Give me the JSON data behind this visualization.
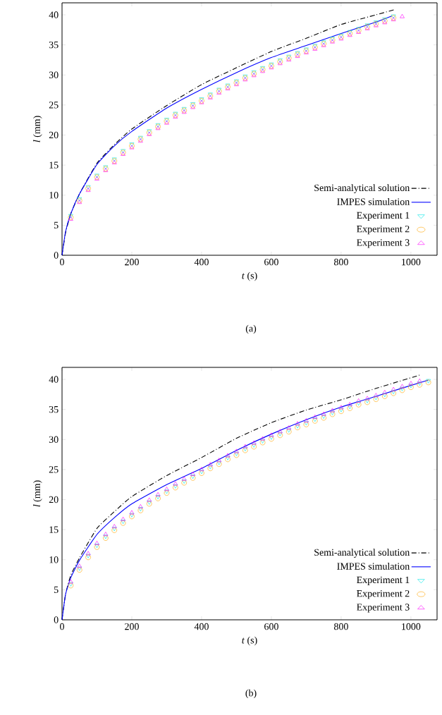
{
  "chart_data": [
    {
      "type": "line",
      "xlabel": "*t* (s)",
      "ylabel": "*l* (mm)",
      "annotations": [
        "(a)"
      ],
      "xlim": [
        0,
        1075
      ],
      "ylim": [
        0,
        42
      ],
      "xticks": [
        0,
        200,
        400,
        600,
        800,
        1000
      ],
      "yticks": [
        0,
        5,
        10,
        15,
        20,
        25,
        30,
        35,
        40
      ],
      "grid": false,
      "legend": "bottom right",
      "series": [
        {
          "name": "Semi-analytical solution",
          "line_style": "dashdot",
          "marker": "none",
          "color": "#000000",
          "x": [
            0,
            10,
            25,
            50,
            100,
            150,
            200,
            300,
            400,
            500,
            600,
            700,
            800,
            900,
            955
          ],
          "values": [
            0,
            3.7,
            6.9,
            10.2,
            15.3,
            18.4,
            21.0,
            24.9,
            28.4,
            31.2,
            33.9,
            36.1,
            38.4,
            40.0,
            40.9
          ]
        },
        {
          "name": "IMPES simulation",
          "line_style": "solid",
          "marker": "none",
          "color": "#0000ff",
          "x": [
            0,
            10,
            25,
            50,
            100,
            150,
            200,
            300,
            400,
            500,
            600,
            700,
            800,
            900,
            945
          ],
          "values": [
            0,
            3.9,
            6.9,
            10.2,
            15.1,
            18.2,
            20.6,
            24.5,
            27.6,
            30.4,
            32.9,
            34.9,
            36.9,
            38.8,
            39.8
          ]
        },
        {
          "name": "Experiment 1",
          "type": "scatter",
          "marker": "triangle_down",
          "color": "#00e5e5",
          "x": [
            25,
            50,
            75,
            100,
            125,
            150,
            175,
            200,
            225,
            250,
            275,
            300,
            325,
            350,
            375,
            400,
            425,
            450,
            475,
            500,
            525,
            550,
            575,
            600,
            625,
            650,
            675,
            700,
            725,
            750,
            775,
            800,
            825,
            850,
            875,
            900,
            925,
            950
          ],
          "values": [
            6.6,
            9.4,
            11.4,
            13.3,
            14.7,
            16.0,
            17.4,
            18.5,
            19.6,
            20.7,
            21.7,
            22.6,
            23.6,
            24.4,
            25.2,
            26.0,
            26.8,
            27.6,
            28.3,
            29.0,
            29.8,
            30.5,
            31.2,
            31.8,
            32.5,
            33.1,
            33.7,
            34.3,
            34.9,
            35.5,
            36.1,
            36.6,
            37.2,
            37.7,
            38.3,
            38.8,
            39.3,
            39.8
          ]
        },
        {
          "name": "Experiment 2",
          "type": "scatter",
          "marker": "circle",
          "color": "#ffa500",
          "x": [
            25,
            50,
            75,
            100,
            125,
            150,
            175,
            200,
            225,
            250,
            275,
            300,
            325,
            350,
            375,
            400,
            425,
            450,
            475,
            500,
            525,
            550,
            575,
            600,
            625,
            650,
            675,
            700,
            725,
            750,
            775,
            800,
            825,
            850,
            875,
            900,
            925,
            950
          ],
          "values": [
            6.3,
            9.1,
            11.1,
            13.0,
            14.4,
            15.7,
            17.1,
            18.2,
            19.3,
            20.4,
            21.4,
            22.3,
            23.3,
            24.1,
            24.9,
            25.7,
            26.5,
            27.3,
            28.0,
            28.7,
            29.5,
            30.2,
            30.9,
            31.5,
            32.2,
            32.8,
            33.4,
            34.0,
            34.6,
            35.2,
            35.8,
            36.3,
            36.9,
            37.4,
            38.0,
            38.5,
            39.0,
            39.5
          ]
        },
        {
          "name": "Experiment 3",
          "type": "scatter",
          "marker": "triangle",
          "color": "#ff00ff",
          "x": [
            25,
            50,
            75,
            100,
            125,
            150,
            175,
            200,
            225,
            250,
            275,
            300,
            325,
            350,
            375,
            400,
            425,
            450,
            475,
            500,
            525,
            550,
            575,
            600,
            625,
            650,
            675,
            700,
            725,
            750,
            775,
            800,
            825,
            850,
            875,
            900,
            925,
            950,
            975
          ],
          "values": [
            6.0,
            8.8,
            10.8,
            12.7,
            14.1,
            15.4,
            16.8,
            17.9,
            19.0,
            20.1,
            21.1,
            22.0,
            23.0,
            23.8,
            24.6,
            25.4,
            26.2,
            27.0,
            27.7,
            28.4,
            29.2,
            29.9,
            30.6,
            31.2,
            31.9,
            32.5,
            33.1,
            33.7,
            34.3,
            34.9,
            35.5,
            36.0,
            36.6,
            37.1,
            37.7,
            38.2,
            38.7,
            39.2,
            39.7
          ]
        }
      ]
    },
    {
      "type": "line",
      "xlabel": "*t* (s)",
      "ylabel": "*l* (mm)",
      "annotations": [
        "(b)"
      ],
      "xlim": [
        0,
        1075
      ],
      "ylim": [
        0,
        42
      ],
      "xticks": [
        0,
        200,
        400,
        600,
        800,
        1000
      ],
      "yticks": [
        0,
        5,
        10,
        15,
        20,
        25,
        30,
        35,
        40
      ],
      "grid": false,
      "legend": "bottom right",
      "series": [
        {
          "name": "Semi-analytical solution",
          "line_style": "dashdot",
          "marker": "none",
          "color": "#000000",
          "x": [
            0,
            10,
            25,
            50,
            100,
            150,
            200,
            300,
            400,
            500,
            600,
            700,
            800,
            900,
            1030
          ],
          "values": [
            0,
            4.2,
            7.4,
            10.3,
            15.2,
            18.0,
            20.5,
            24.0,
            27.0,
            30.2,
            32.8,
            34.9,
            36.6,
            38.5,
            40.8
          ]
        },
        {
          "name": "IMPES simulation",
          "line_style": "solid",
          "marker": "none",
          "color": "#0000ff",
          "x": [
            0,
            10,
            25,
            50,
            100,
            150,
            200,
            300,
            400,
            500,
            600,
            700,
            800,
            900,
            1050
          ],
          "values": [
            0,
            4.2,
            7.0,
            9.9,
            14.2,
            17.0,
            19.3,
            22.5,
            25.2,
            28.2,
            30.9,
            33.3,
            35.4,
            37.2,
            39.9
          ]
        },
        {
          "name": "Experiment 1",
          "type": "scatter",
          "marker": "triangle_down",
          "color": "#00e5e5",
          "x": [
            25,
            50,
            75,
            100,
            125,
            150,
            175,
            200,
            225,
            250,
            275,
            300,
            325,
            350,
            375,
            400,
            425,
            450,
            475,
            500,
            525,
            550,
            575,
            600,
            625,
            650,
            675,
            700,
            725,
            750,
            775,
            800,
            825,
            850,
            875,
            900,
            925,
            950,
            975,
            1000,
            1025,
            1050
          ],
          "values": [
            6.0,
            8.6,
            10.7,
            12.4,
            13.9,
            15.2,
            16.4,
            17.5,
            18.5,
            19.6,
            20.5,
            21.4,
            22.3,
            23.1,
            23.9,
            24.7,
            25.5,
            26.2,
            27.0,
            27.7,
            28.5,
            29.1,
            29.8,
            30.4,
            31.0,
            31.6,
            32.3,
            32.8,
            33.4,
            33.9,
            34.5,
            35.0,
            35.5,
            36.1,
            36.5,
            37.0,
            37.5,
            38.0,
            38.5,
            39.0,
            39.4,
            39.8
          ]
        },
        {
          "name": "Experiment 2",
          "type": "scatter",
          "marker": "circle",
          "color": "#ffa500",
          "x": [
            25,
            50,
            75,
            100,
            125,
            150,
            175,
            200,
            225,
            250,
            275,
            300,
            325,
            350,
            375,
            400,
            425,
            450,
            475,
            500,
            525,
            550,
            575,
            600,
            625,
            650,
            675,
            700,
            725,
            750,
            775,
            800,
            825,
            850,
            875,
            900,
            925,
            950,
            975,
            1000,
            1025,
            1050
          ],
          "values": [
            5.7,
            8.3,
            10.4,
            12.1,
            13.6,
            14.9,
            16.1,
            17.2,
            18.2,
            19.3,
            20.2,
            21.1,
            22.0,
            22.8,
            23.6,
            24.4,
            25.2,
            25.9,
            26.7,
            27.4,
            28.2,
            28.8,
            29.5,
            30.1,
            30.7,
            31.3,
            32.0,
            32.5,
            33.1,
            33.6,
            34.2,
            34.7,
            35.2,
            35.8,
            36.2,
            36.7,
            37.2,
            37.7,
            38.2,
            38.7,
            39.1,
            39.5
          ]
        },
        {
          "name": "Experiment 3",
          "type": "scatter",
          "marker": "triangle",
          "color": "#ff00ff",
          "x": [
            25,
            50,
            75,
            100,
            125,
            150,
            175,
            200,
            225,
            250,
            275,
            300,
            325,
            350,
            375,
            400,
            425,
            450,
            475,
            500,
            525,
            550,
            575,
            600,
            625,
            650,
            675,
            700,
            725,
            750,
            775,
            800,
            825,
            850,
            875,
            900,
            925,
            950,
            975,
            1000,
            1025
          ],
          "values": [
            6.3,
            8.9,
            11.0,
            12.7,
            14.2,
            15.5,
            16.7,
            17.8,
            18.8,
            19.9,
            20.8,
            21.7,
            22.6,
            23.4,
            24.2,
            25.0,
            25.8,
            26.5,
            27.3,
            28.0,
            28.8,
            29.4,
            30.1,
            30.7,
            31.3,
            31.9,
            32.6,
            33.1,
            33.7,
            34.2,
            34.8,
            35.3,
            35.8,
            36.4,
            36.8,
            37.3,
            37.8,
            38.3,
            38.8,
            39.3,
            39.7
          ]
        }
      ]
    }
  ]
}
